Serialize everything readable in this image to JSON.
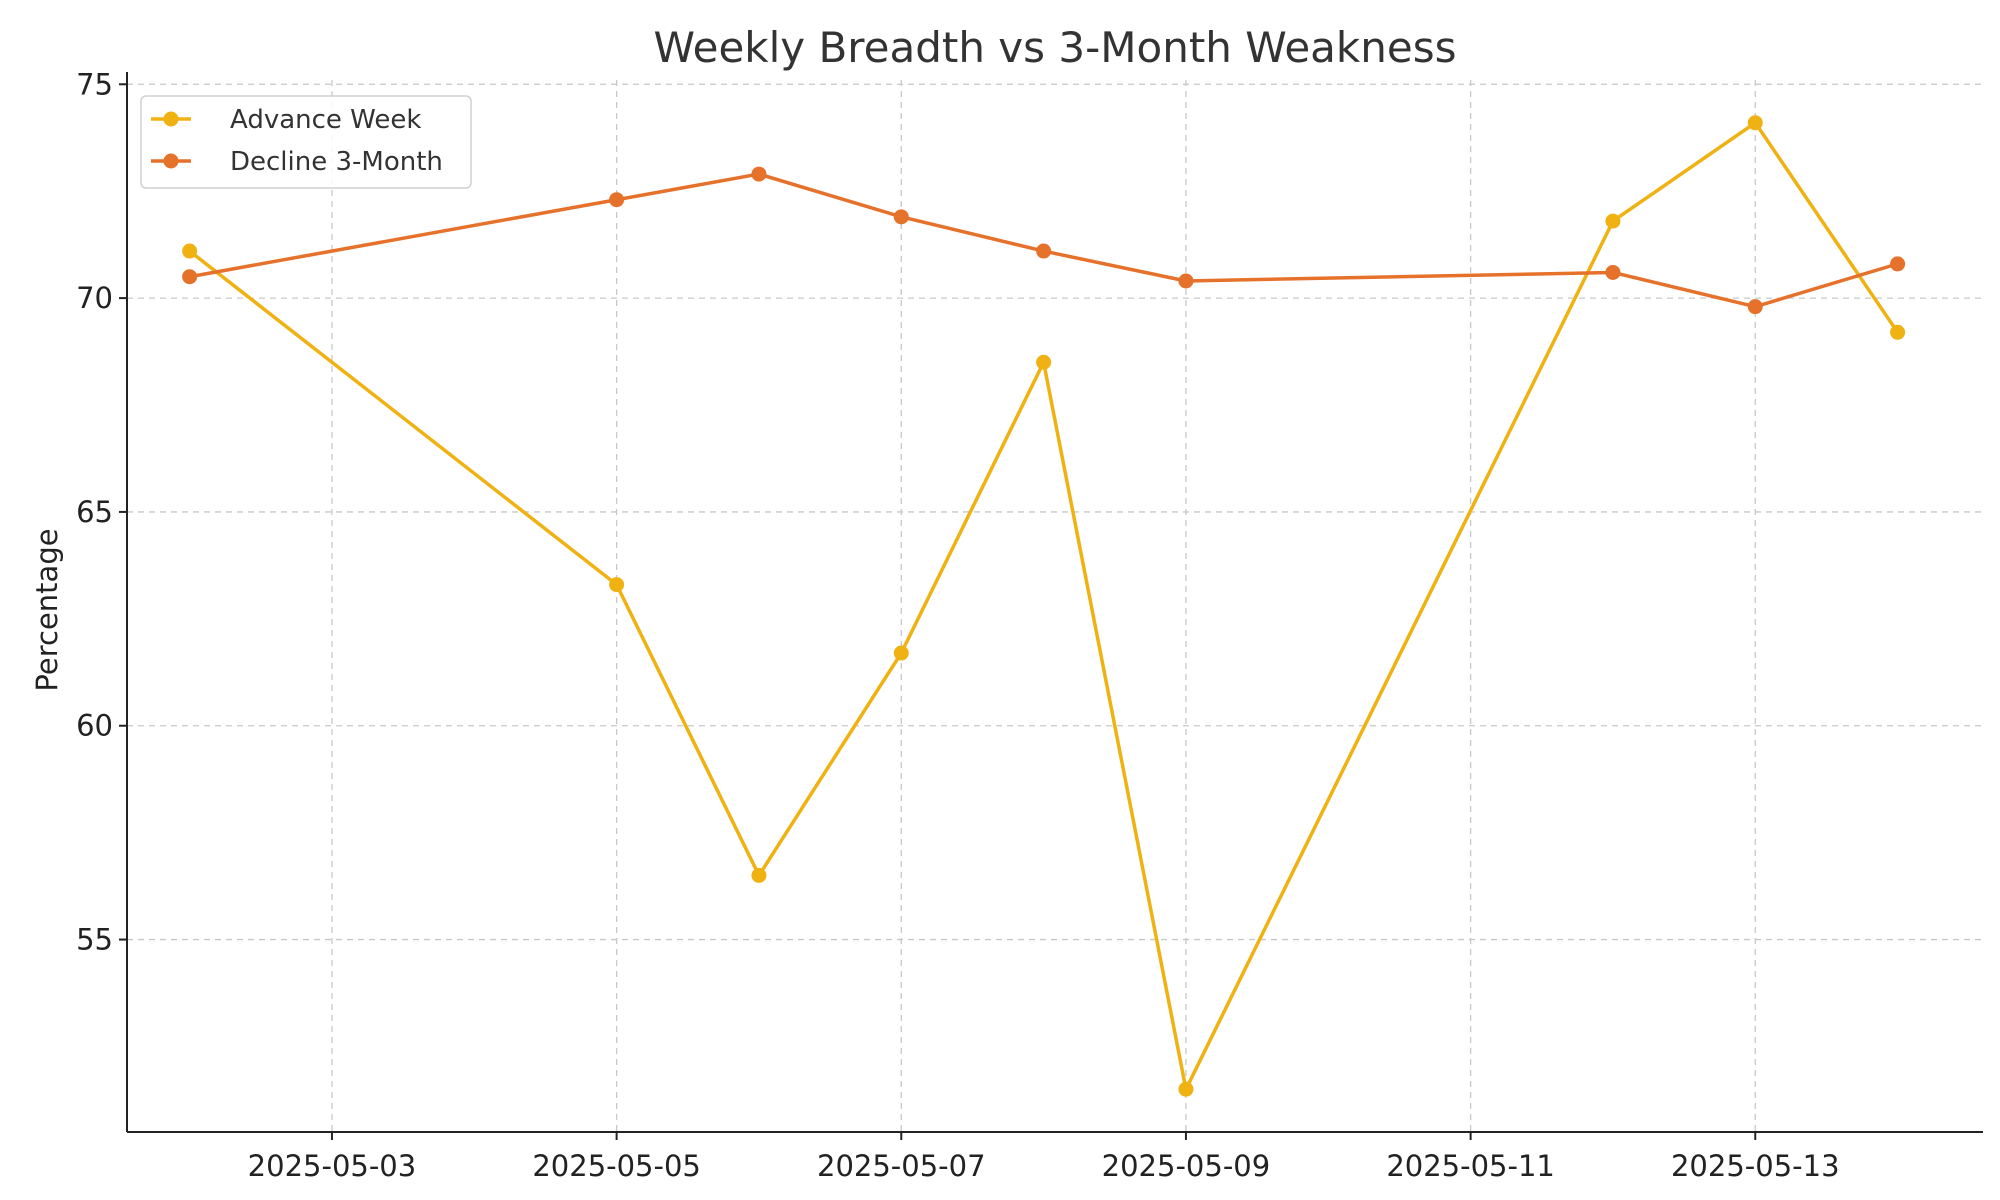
{
  "chart_data": {
    "type": "line",
    "title": "Weekly Breadth vs 3-Month Weakness",
    "xlabel": "",
    "ylabel": "Percentage",
    "x": [
      "2025-05-02",
      "2025-05-05",
      "2025-05-06",
      "2025-05-07",
      "2025-05-08",
      "2025-05-09",
      "2025-05-12",
      "2025-05-13",
      "2025-05-14"
    ],
    "x_ticks": [
      "2025-05-03",
      "2025-05-05",
      "2025-05-07",
      "2025-05-09",
      "2025-05-11",
      "2025-05-13"
    ],
    "xlim": [
      "2025-05-01",
      "2025-05-14"
    ],
    "ylim": [
      50.5,
      75.1
    ],
    "y_ticks": [
      55,
      60,
      65,
      70,
      75
    ],
    "grid": true,
    "legend": "top-left",
    "series": [
      {
        "name": "Advance Week",
        "color": "#f0b112",
        "values": [
          71.1,
          63.3,
          56.5,
          61.7,
          68.5,
          51.5,
          71.8,
          74.1,
          69.2
        ]
      },
      {
        "name": "Decline 3-Month",
        "color": "#e6712b",
        "values": [
          70.5,
          72.3,
          72.9,
          71.9,
          71.1,
          70.4,
          70.6,
          69.8,
          70.8
        ]
      }
    ]
  }
}
